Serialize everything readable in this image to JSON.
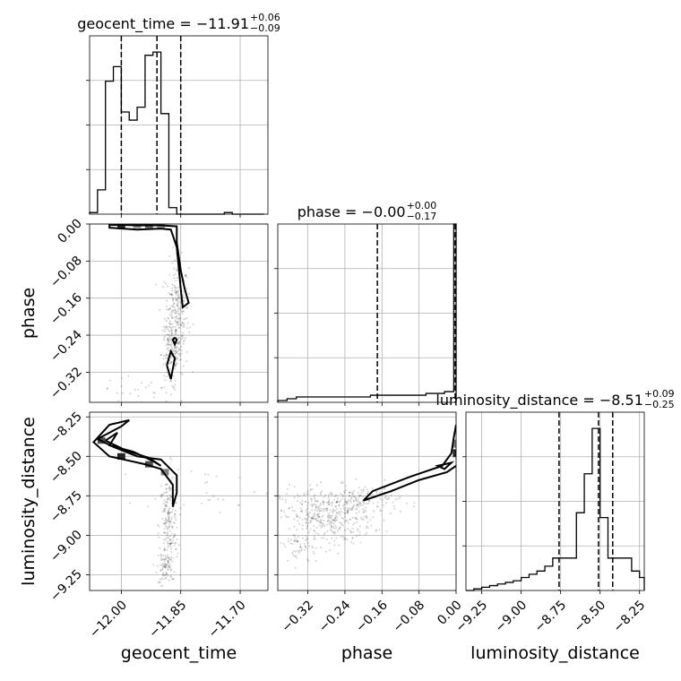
{
  "chart_data": {
    "type": "corner",
    "parameters": [
      "geocent_time",
      "phase",
      "luminosity_distance"
    ],
    "axis_labels": {
      "geocent_time": "geocent_time",
      "phase": "phase",
      "luminosity_distance": "luminosity_distance"
    },
    "ranges": {
      "geocent_time": [
        -12.08,
        -11.63
      ],
      "phase": [
        -0.385,
        0.0
      ],
      "luminosity_distance": [
        -9.35,
        -8.22
      ]
    },
    "ticks": {
      "geocent_time": [
        {
          "v": -12.0,
          "label": "−12.00"
        },
        {
          "v": -11.85,
          "label": "−11.85"
        },
        {
          "v": -11.7,
          "label": "−11.70"
        }
      ],
      "phase": [
        {
          "v": -0.32,
          "label": "−0.32"
        },
        {
          "v": -0.24,
          "label": "−0.24"
        },
        {
          "v": -0.16,
          "label": "−0.16"
        },
        {
          "v": -0.08,
          "label": "−0.08"
        },
        {
          "v": 0.0,
          "label": "0.00"
        }
      ],
      "luminosity_distance": [
        {
          "v": -9.25,
          "label": "−9.25"
        },
        {
          "v": -9.0,
          "label": "−9.00"
        },
        {
          "v": -8.75,
          "label": "−8.75"
        },
        {
          "v": -8.5,
          "label": "−8.50"
        },
        {
          "v": -8.25,
          "label": "−8.25"
        }
      ]
    },
    "titles": [
      {
        "param": "geocent_time",
        "prefix": "geocent_time = −11.91",
        "plus": "+0.06",
        "minus": "−0.09"
      },
      {
        "param": "phase",
        "prefix": "phase = −0.00",
        "plus": "+0.00",
        "minus": "−0.17"
      },
      {
        "param": "luminosity_distance",
        "prefix": "luminosity_distance = −8.51",
        "plus": "+0.09",
        "minus": "−0.25"
      }
    ],
    "histograms": [
      {
        "param": "geocent_time",
        "bin_edges": [
          -12.08,
          -12.06,
          -12.04,
          -12.02,
          -12.0,
          -11.98,
          -11.96,
          -11.94,
          -11.92,
          -11.9,
          -11.88,
          -11.86,
          -11.84,
          -11.82,
          -11.8,
          -11.78,
          -11.76,
          -11.74,
          -11.72,
          -11.7,
          -11.68,
          -11.66,
          -11.64
        ],
        "counts": [
          0.01,
          0.15,
          0.82,
          0.91,
          0.63,
          0.58,
          0.66,
          0.98,
          1.0,
          0.62,
          0.04,
          0.0,
          0.0,
          0.0,
          0.0,
          0.0,
          0.0,
          0.01,
          0.0,
          0.0,
          0.0,
          0.0
        ],
        "ymax": 1.1,
        "quantiles": [
          -12.0,
          -11.91,
          -11.85
        ]
      },
      {
        "param": "phase",
        "bin_edges": [
          -0.385,
          -0.365,
          -0.345,
          -0.325,
          -0.305,
          -0.285,
          -0.265,
          -0.245,
          -0.225,
          -0.205,
          -0.185,
          -0.165,
          -0.145,
          -0.125,
          -0.105,
          -0.085,
          -0.065,
          -0.045,
          -0.025,
          -0.005,
          0.0
        ],
        "counts": [
          0.01,
          0.02,
          0.03,
          0.03,
          0.03,
          0.03,
          0.03,
          0.03,
          0.03,
          0.03,
          0.04,
          0.04,
          0.04,
          0.04,
          0.04,
          0.04,
          0.05,
          0.05,
          0.06,
          1.0
        ],
        "ymax": 1.0,
        "quantiles": [
          -0.17,
          -0.002
        ]
      },
      {
        "param": "luminosity_distance",
        "bin_edges": [
          -9.35,
          -9.3,
          -9.25,
          -9.2,
          -9.15,
          -9.1,
          -9.05,
          -9.0,
          -8.95,
          -8.9,
          -8.85,
          -8.8,
          -8.75,
          -8.7,
          -8.65,
          -8.6,
          -8.55,
          -8.5,
          -8.45,
          -8.4,
          -8.35,
          -8.3,
          -8.25,
          -8.22
        ],
        "counts": [
          0.0,
          0.01,
          0.02,
          0.03,
          0.04,
          0.05,
          0.06,
          0.08,
          0.1,
          0.12,
          0.15,
          0.2,
          0.2,
          0.2,
          0.48,
          0.72,
          1.0,
          0.45,
          0.2,
          0.2,
          0.2,
          0.12,
          0.08
        ],
        "ymax": 1.1,
        "quantiles": [
          -8.76,
          -8.51,
          -8.42
        ]
      }
    ],
    "panels_2d": [
      {
        "x": "geocent_time",
        "y": "phase",
        "contours": [
          [
            [
              -12.0,
              -0.002
            ],
            [
              -11.96,
              -0.003
            ],
            [
              -11.9,
              -0.003
            ],
            [
              -11.86,
              -0.005
            ],
            [
              -11.86,
              -0.04
            ],
            [
              -11.85,
              -0.1
            ],
            [
              -11.84,
              -0.14
            ],
            [
              -11.83,
              -0.17
            ],
            [
              -11.845,
              -0.18
            ],
            [
              -11.85,
              -0.14
            ],
            [
              -11.86,
              -0.05
            ],
            [
              -11.875,
              -0.012
            ],
            [
              -11.9,
              -0.01
            ],
            [
              -11.96,
              -0.012
            ],
            [
              -12.03,
              -0.008
            ],
            [
              -12.03,
              -0.002
            ],
            [
              -12.0,
              -0.002
            ]
          ],
          [
            [
              -11.885,
              -0.305
            ],
            [
              -11.875,
              -0.275
            ],
            [
              -11.865,
              -0.29
            ],
            [
              -11.875,
              -0.335
            ],
            [
              -11.885,
              -0.305
            ]
          ],
          [
            [
              -11.865,
              -0.245
            ],
            [
              -11.86,
              -0.25
            ],
            [
              -11.865,
              -0.26
            ],
            [
              -11.87,
              -0.25
            ],
            [
              -11.865,
              -0.245
            ]
          ]
        ],
        "density_cells": [
          {
            "x": -12.0,
            "y": -0.003,
            "w": 0.02,
            "h": 0.012,
            "level": 0.85
          },
          {
            "x": -11.96,
            "y": -0.003,
            "w": 0.02,
            "h": 0.012,
            "level": 0.45
          },
          {
            "x": -11.93,
            "y": -0.003,
            "w": 0.02,
            "h": 0.012,
            "level": 0.6
          },
          {
            "x": -11.9,
            "y": -0.003,
            "w": 0.02,
            "h": 0.012,
            "level": 0.4
          }
        ],
        "samples": [
          {
            "x": -11.86,
            "y": -0.2,
            "sx": 0.015,
            "sy": 0.06,
            "n": 260
          },
          {
            "x": -11.875,
            "y": -0.28,
            "sx": 0.012,
            "sy": 0.04,
            "n": 140
          },
          {
            "x": -11.96,
            "y": -0.36,
            "sx": 0.05,
            "sy": 0.015,
            "n": 25
          }
        ]
      },
      {
        "x": "geocent_time",
        "y": "luminosity_distance",
        "contours": [
          [
            [
              -12.06,
              -8.39
            ],
            [
              -12.0,
              -8.31
            ],
            [
              -11.98,
              -8.27
            ],
            [
              -12.03,
              -8.3
            ],
            [
              -12.07,
              -8.41
            ],
            [
              -12.03,
              -8.5
            ],
            [
              -11.94,
              -8.55
            ],
            [
              -11.9,
              -8.58
            ],
            [
              -11.87,
              -8.68
            ],
            [
              -11.87,
              -8.82
            ],
            [
              -11.86,
              -8.73
            ],
            [
              -11.86,
              -8.62
            ],
            [
              -11.9,
              -8.52
            ],
            [
              -11.96,
              -8.5
            ],
            [
              -12.02,
              -8.44
            ],
            [
              -12.06,
              -8.39
            ]
          ],
          [
            [
              -12.04,
              -8.4
            ],
            [
              -12.01,
              -8.35
            ],
            [
              -12.03,
              -8.43
            ],
            [
              -11.97,
              -8.47
            ],
            [
              -11.92,
              -8.53
            ],
            [
              -11.9,
              -8.56
            ],
            [
              -11.93,
              -8.51
            ],
            [
              -11.99,
              -8.46
            ],
            [
              -12.04,
              -8.4
            ]
          ]
        ],
        "density_cells": [
          {
            "x": -12.05,
            "y": -8.4,
            "w": 0.02,
            "h": 0.04,
            "level": 0.7
          },
          {
            "x": -12.0,
            "y": -8.5,
            "w": 0.02,
            "h": 0.04,
            "level": 0.85
          },
          {
            "x": -11.93,
            "y": -8.55,
            "w": 0.02,
            "h": 0.04,
            "level": 0.7
          },
          {
            "x": -11.89,
            "y": -8.6,
            "w": 0.02,
            "h": 0.04,
            "level": 0.5
          }
        ],
        "samples": [
          {
            "x": -11.88,
            "y": -8.95,
            "sx": 0.012,
            "sy": 0.18,
            "n": 220
          },
          {
            "x": -11.89,
            "y": -9.2,
            "sx": 0.01,
            "sy": 0.06,
            "n": 60
          },
          {
            "x": -11.78,
            "y": -8.7,
            "sx": 0.08,
            "sy": 0.08,
            "n": 30
          }
        ]
      },
      {
        "x": "phase",
        "y": "luminosity_distance",
        "contours": [
          [
            [
              0.0,
              -8.3
            ],
            [
              -0.005,
              -8.38
            ],
            [
              -0.01,
              -8.48
            ],
            [
              -0.03,
              -8.56
            ],
            [
              -0.1,
              -8.63
            ],
            [
              -0.18,
              -8.72
            ],
            [
              -0.2,
              -8.78
            ],
            [
              -0.14,
              -8.72
            ],
            [
              -0.08,
              -8.65
            ],
            [
              -0.02,
              -8.6
            ],
            [
              0.0,
              -8.56
            ]
          ],
          [
            [
              -0.025,
              -8.55
            ],
            [
              -0.01,
              -8.54
            ],
            [
              -0.025,
              -8.58
            ],
            [
              -0.04,
              -8.56
            ],
            [
              -0.025,
              -8.55
            ]
          ]
        ],
        "density_cells": [
          {
            "x": -0.002,
            "y": -8.48,
            "w": 0.01,
            "h": 0.05,
            "level": 0.85
          },
          {
            "x": -0.002,
            "y": -8.42,
            "w": 0.01,
            "h": 0.05,
            "level": 0.5
          }
        ],
        "samples": [
          {
            "x": -0.28,
            "y": -8.88,
            "sx": 0.05,
            "sy": 0.09,
            "n": 420
          },
          {
            "x": -0.2,
            "y": -8.78,
            "sx": 0.04,
            "sy": 0.05,
            "n": 120
          },
          {
            "x": -0.34,
            "y": -9.08,
            "sx": 0.02,
            "sy": 0.06,
            "n": 50
          }
        ]
      }
    ]
  }
}
